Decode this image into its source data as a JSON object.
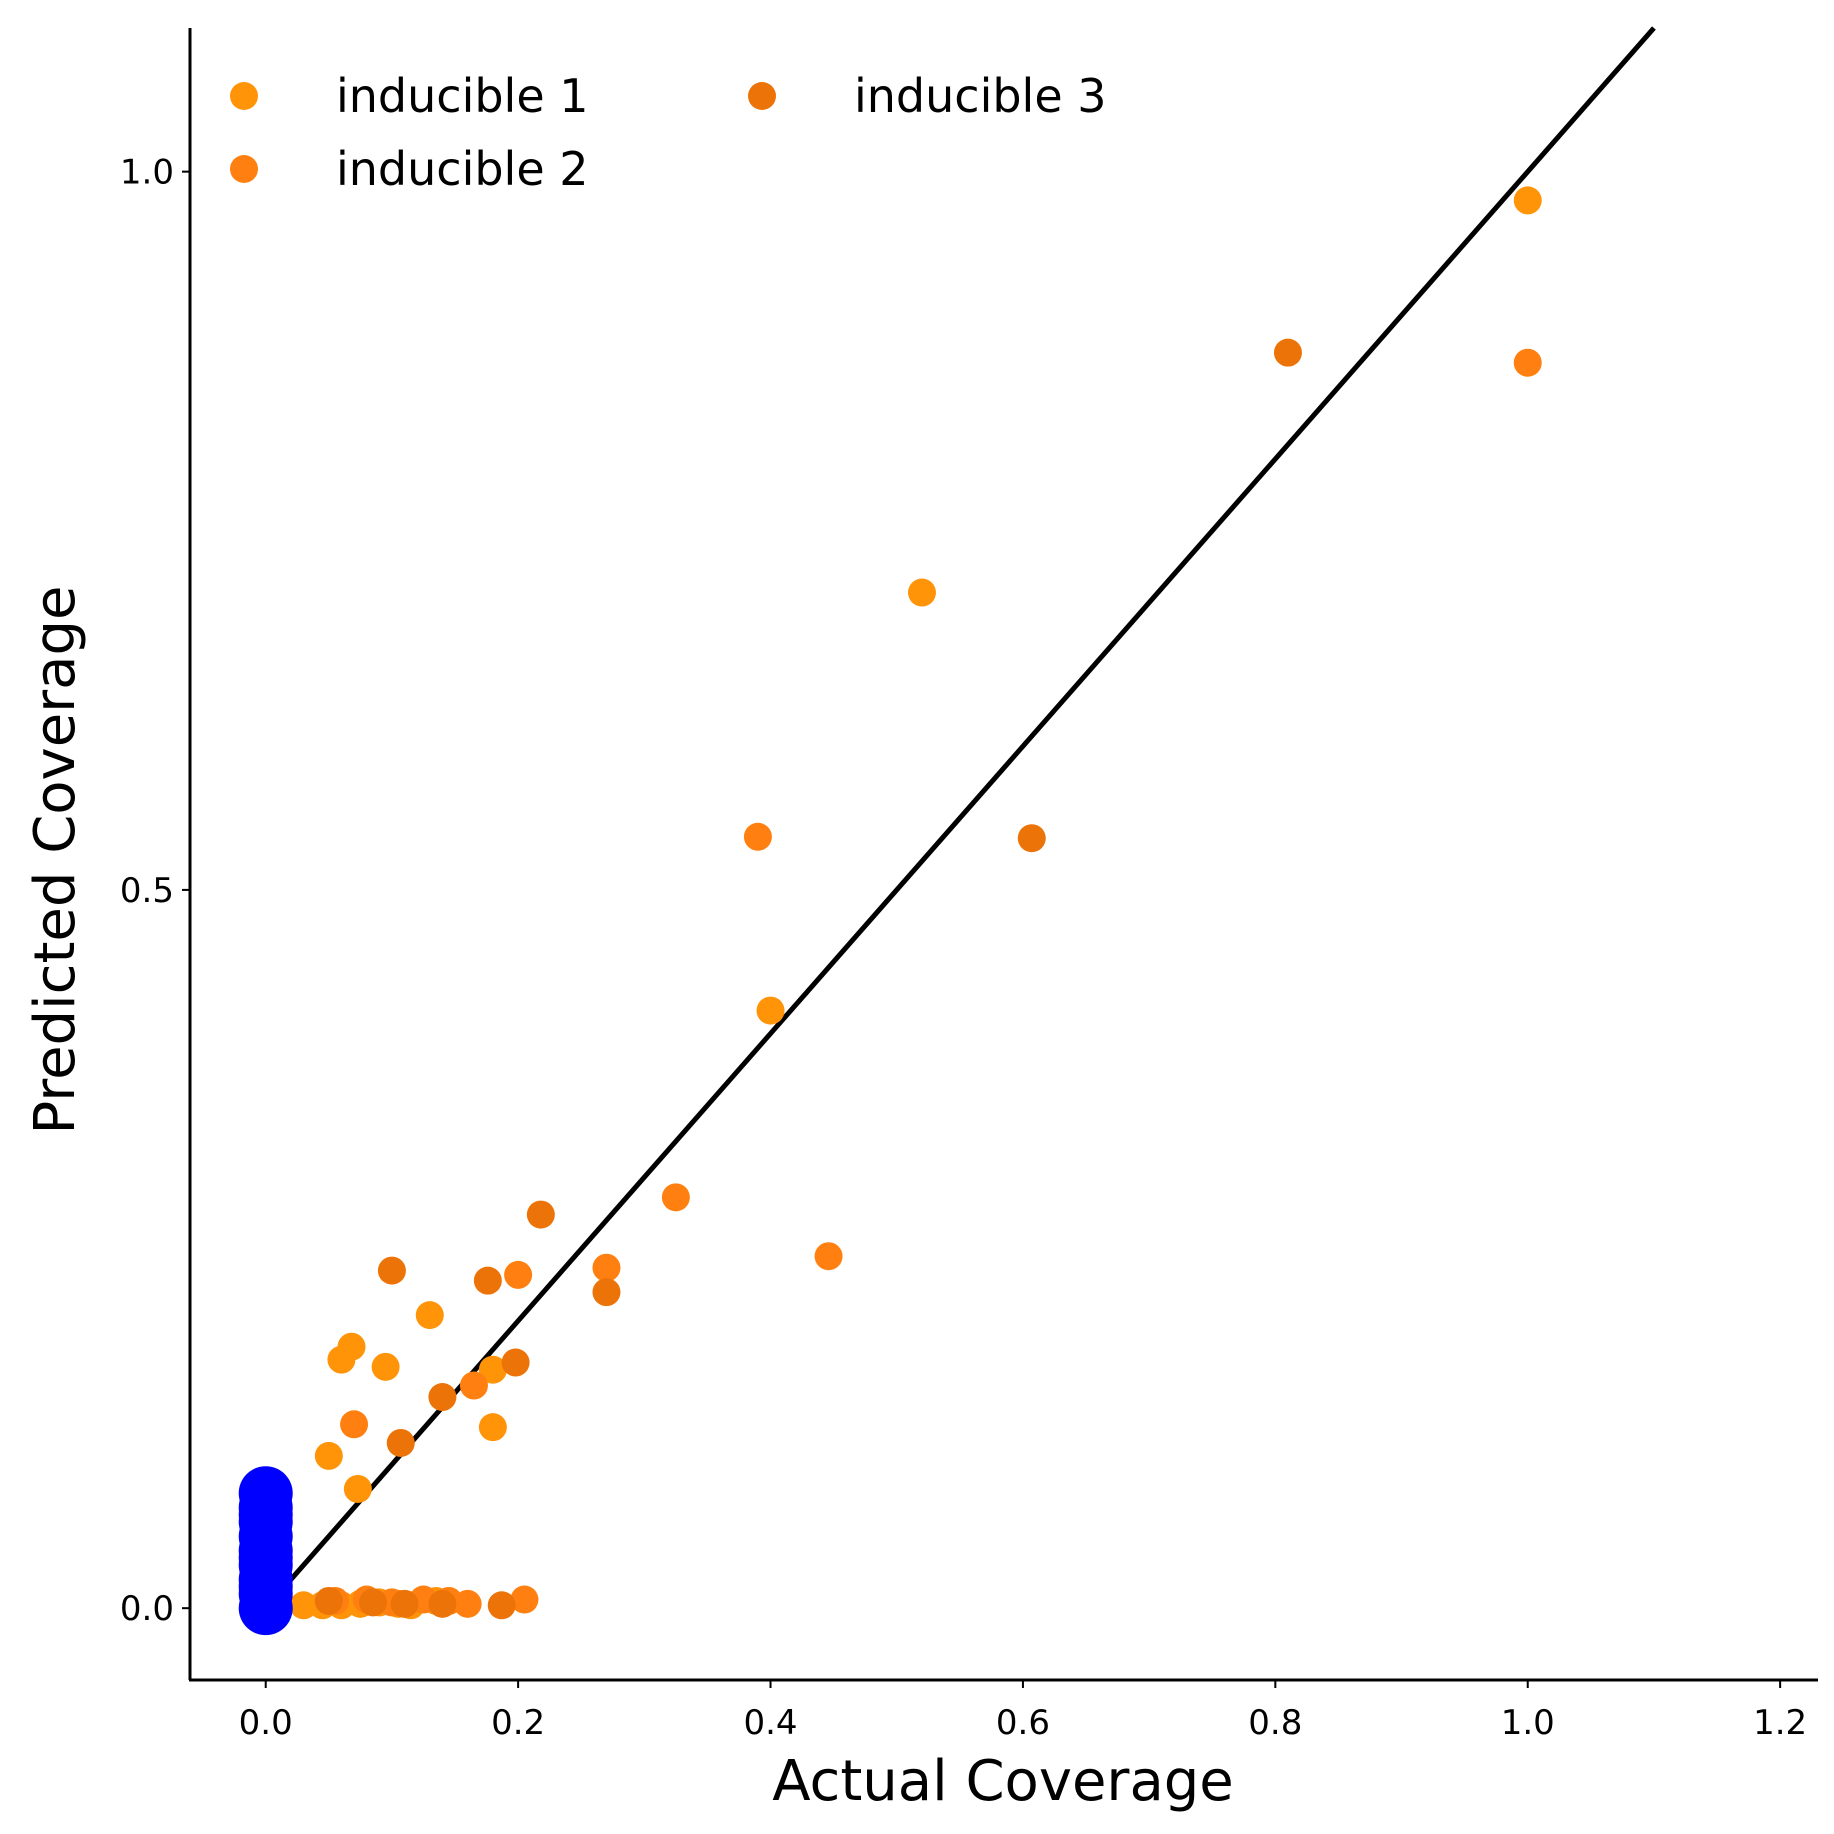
{
  "chart_data": {
    "type": "scatter",
    "title": "",
    "xlabel": "Actual Coverage",
    "ylabel": "Predicted Coverage",
    "xlim": [
      -0.06,
      1.23
    ],
    "ylim": [
      -0.05,
      1.1
    ],
    "xticks": [
      0.0,
      0.2,
      0.4,
      0.6,
      0.8,
      1.0,
      1.2
    ],
    "xtick_labels": [
      "0.0",
      "0.2",
      "0.4",
      "0.6",
      "0.8",
      "1.0",
      "1.2"
    ],
    "yticks": [
      0.0,
      0.5,
      1.0
    ],
    "ytick_labels": [
      "0.0",
      "0.5",
      "1.0"
    ],
    "grid": false,
    "legend_position": "top-left",
    "reference_line": {
      "from": [
        0.0,
        0.0
      ],
      "to": [
        1.1,
        1.1
      ],
      "color": "#000000"
    },
    "series": [
      {
        "name": "inducible 1",
        "color": "#FF9408",
        "points": [
          [
            1.0,
            0.98
          ],
          [
            0.52,
            0.707
          ],
          [
            0.4,
            0.416
          ],
          [
            0.13,
            0.204
          ],
          [
            0.095,
            0.168
          ],
          [
            0.068,
            0.182
          ],
          [
            0.06,
            0.173
          ],
          [
            0.18,
            0.166
          ],
          [
            0.18,
            0.126
          ],
          [
            0.05,
            0.106
          ],
          [
            0.073,
            0.083
          ],
          [
            0.03,
            0.002
          ],
          [
            0.045,
            0.002
          ],
          [
            0.06,
            0.002
          ],
          [
            0.075,
            0.003
          ],
          [
            0.09,
            0.004
          ],
          [
            0.105,
            0.003
          ],
          [
            0.115,
            0.002
          ],
          [
            0.135,
            0.005
          ]
        ]
      },
      {
        "name": "inducible 2",
        "color": "#FF8010",
        "points": [
          [
            1.0,
            0.867
          ],
          [
            0.39,
            0.537
          ],
          [
            0.325,
            0.286
          ],
          [
            0.446,
            0.245
          ],
          [
            0.27,
            0.237
          ],
          [
            0.2,
            0.232
          ],
          [
            0.07,
            0.128
          ],
          [
            0.165,
            0.155
          ],
          [
            0.055,
            0.005
          ],
          [
            0.08,
            0.006
          ],
          [
            0.1,
            0.004
          ],
          [
            0.125,
            0.006
          ],
          [
            0.145,
            0.005
          ],
          [
            0.16,
            0.003
          ],
          [
            0.205,
            0.006
          ]
        ]
      },
      {
        "name": "inducible 3",
        "color": "#EC7308",
        "points": [
          [
            0.81,
            0.874
          ],
          [
            0.607,
            0.536
          ],
          [
            0.218,
            0.274
          ],
          [
            0.1,
            0.235
          ],
          [
            0.176,
            0.228
          ],
          [
            0.27,
            0.22
          ],
          [
            0.198,
            0.171
          ],
          [
            0.14,
            0.147
          ],
          [
            0.107,
            0.115
          ],
          [
            0.05,
            0.005
          ],
          [
            0.085,
            0.004
          ],
          [
            0.11,
            0.003
          ],
          [
            0.14,
            0.003
          ],
          [
            0.187,
            0.002
          ]
        ]
      },
      {
        "color": "#0000FF",
        "points": [
          [
            0.0,
            0.0
          ],
          [
            0.0,
            0.01
          ],
          [
            0.0,
            0.02
          ],
          [
            0.0,
            0.03
          ],
          [
            0.0,
            0.04
          ],
          [
            0.0,
            0.05
          ],
          [
            0.0,
            0.06
          ],
          [
            0.0,
            0.07
          ],
          [
            0.0,
            0.08
          ],
          [
            0.0,
            0.065
          ],
          [
            0.0,
            0.035
          ],
          [
            0.0,
            0.015
          ]
        ],
        "marker_size": "large"
      }
    ]
  }
}
